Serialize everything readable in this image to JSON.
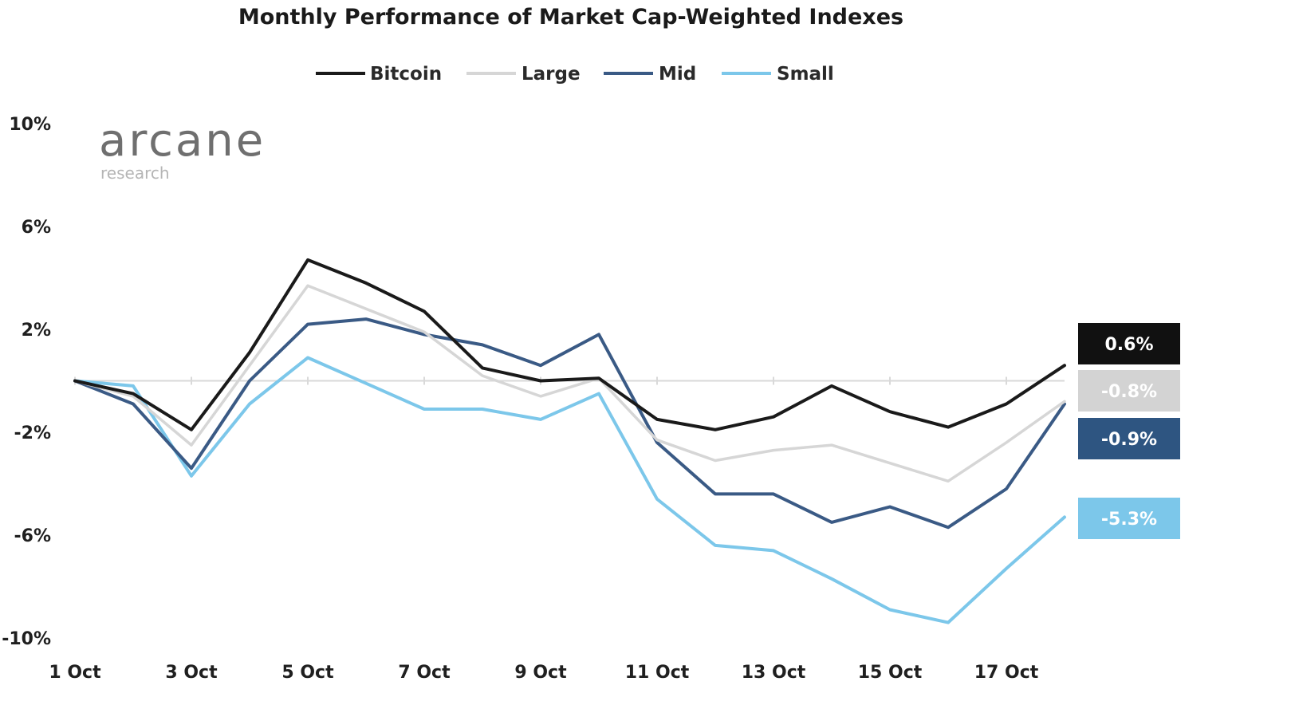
{
  "chart_data": {
    "type": "line",
    "title": "Monthly Performance of Market Cap-Weighted Indexes",
    "xlabel": "",
    "ylabel": "",
    "x": [
      "1 Oct",
      "2 Oct",
      "3 Oct",
      "4 Oct",
      "5 Oct",
      "6 Oct",
      "7 Oct",
      "8 Oct",
      "9 Oct",
      "10 Oct",
      "11 Oct",
      "12 Oct",
      "13 Oct",
      "14 Oct",
      "15 Oct",
      "16 Oct",
      "17 Oct",
      "18 Oct"
    ],
    "x_tick_labels": [
      "1 Oct",
      "3 Oct",
      "5 Oct",
      "7 Oct",
      "9 Oct",
      "11 Oct",
      "13 Oct",
      "15 Oct",
      "17 Oct"
    ],
    "y_tick_labels": [
      "10%",
      "6%",
      "2%",
      "-2%",
      "-6%",
      "-10%"
    ],
    "y_ticks": [
      10,
      6,
      2,
      -2,
      -6,
      -10
    ],
    "ylim": [
      -10,
      10
    ],
    "grid": false,
    "zero_line": true,
    "legend_position": "top",
    "series": [
      {
        "name": "Bitcoin",
        "color": "#1a1a1a",
        "values": [
          0,
          -0.5,
          -1.9,
          1.1,
          4.7,
          3.8,
          2.7,
          0.5,
          0.0,
          0.1,
          -1.5,
          -1.9,
          -1.4,
          -0.2,
          -1.2,
          -1.8,
          -0.9,
          0.6
        ],
        "end_label": "0.6%"
      },
      {
        "name": "Large",
        "color": "#d6d6d6",
        "values": [
          0,
          -0.6,
          -2.5,
          0.6,
          3.7,
          2.8,
          1.9,
          0.2,
          -0.6,
          0.1,
          -2.3,
          -3.1,
          -2.7,
          -2.5,
          -3.2,
          -3.9,
          -2.4,
          -0.8
        ],
        "end_label": "-0.8%"
      },
      {
        "name": "Mid",
        "color": "#3a5a85",
        "values": [
          0,
          -0.9,
          -3.4,
          0.0,
          2.2,
          2.4,
          1.8,
          1.4,
          0.6,
          1.8,
          -2.4,
          -4.4,
          -4.4,
          -5.5,
          -4.9,
          -5.7,
          -4.2,
          -0.9
        ],
        "end_label": "-0.9%"
      },
      {
        "name": "Small",
        "color": "#7cc7ea",
        "values": [
          0,
          -0.2,
          -3.7,
          -0.9,
          0.9,
          -0.1,
          -1.1,
          -1.1,
          -1.5,
          -0.5,
          -4.6,
          -6.4,
          -6.6,
          -7.7,
          -8.9,
          -9.4,
          -7.3,
          -5.3
        ],
        "end_label": "-5.3%"
      }
    ],
    "end_label_colors": [
      "#111111",
      "#d3d3d3",
      "#2e5581",
      "#7cc7ea"
    ]
  },
  "logo": {
    "name": "arcane",
    "sub": "research"
  }
}
